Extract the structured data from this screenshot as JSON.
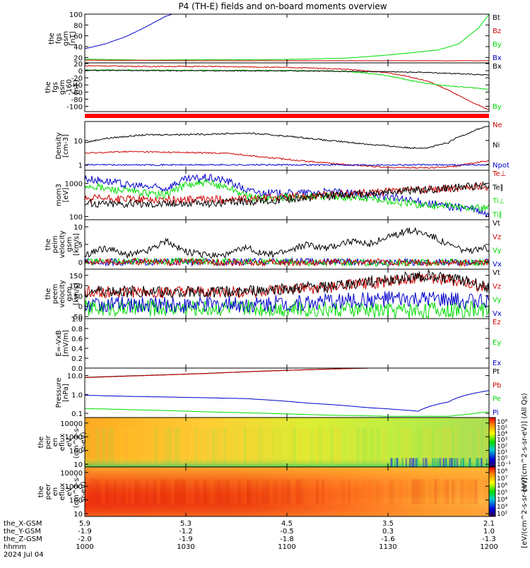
{
  "title": "P4 (TH-E) fields and on-board moments overview",
  "ephemeris": {
    "row_labels": [
      "the_X-GSM",
      "the_Y-GSM",
      "the_Z-GSM",
      "hhmm",
      "2024 Jul 04"
    ],
    "columns": [
      [
        "5.9",
        "-1.9",
        "-2.0",
        "1000"
      ],
      [
        "5.3",
        "-1.2",
        "-1.9",
        "1030"
      ],
      [
        "4.5",
        "-0.5",
        "-1.8",
        "1100"
      ],
      [
        "3.5",
        "0.3",
        "-1.6",
        "1130"
      ],
      [
        "2.1",
        "1.0",
        "-1.3",
        "1200"
      ]
    ]
  },
  "colors": {
    "black": "#000000",
    "red": "#cc0000",
    "green": "#00dd00",
    "blue": "#0000cc",
    "state_bar": "#ff0000"
  },
  "chart_data": [
    {
      "type": "line",
      "ylabel": [
        "the",
        "fgs",
        "gsm",
        "[nT]"
      ],
      "yticks": [
        "20",
        "40",
        "60",
        "80",
        "100"
      ],
      "ylim": [
        10,
        100
      ],
      "legend": [
        "Bt",
        "Bz",
        "By",
        "Bx"
      ],
      "legend_colors": [
        "#000000",
        "#cc0000",
        "#00dd00",
        "#0000cc"
      ],
      "series": [
        {
          "color": "#0000cc",
          "x": [
            0,
            10,
            20,
            30,
            40,
            45
          ],
          "y": [
            36,
            45,
            58,
            76,
            96,
            102
          ]
        },
        {
          "color": "#00dd00",
          "x": [
            0,
            30,
            60,
            90,
            110,
            130,
            145,
            160,
            175,
            185,
            195,
            200
          ],
          "y": [
            17,
            15,
            16,
            16,
            17,
            19,
            23,
            28,
            34,
            45,
            75,
            100
          ]
        },
        {
          "color": "#cc0000",
          "x": [
            0,
            60,
            120,
            200
          ],
          "y": [
            15,
            14,
            14,
            14
          ]
        }
      ]
    },
    {
      "type": "line",
      "ylabel": [
        "the",
        "fgs",
        "gsm",
        "-160",
        "[nT]"
      ],
      "yticks": [
        "20",
        "0",
        "-20",
        "-40",
        "-60",
        "-80",
        "-100"
      ],
      "ylim": [
        -115,
        22
      ],
      "legend": [
        "Bx",
        "By"
      ],
      "legend_colors": [
        "#000000",
        "#00dd00"
      ],
      "series": [
        {
          "color": "#cc0000",
          "x": [
            0,
            30,
            60,
            90,
            110,
            130,
            150,
            160,
            170,
            180,
            190,
            200
          ],
          "y": [
            14,
            12,
            12,
            10,
            8,
            4,
            -6,
            -16,
            -30,
            -55,
            -85,
            -110
          ]
        },
        {
          "color": "#00dd00",
          "x": [
            0,
            40,
            80,
            110,
            130,
            145,
            155,
            165,
            175,
            185,
            200
          ],
          "y": [
            2,
            1,
            1,
            0,
            -2,
            -10,
            -20,
            -32,
            -40,
            -45,
            -52
          ]
        },
        {
          "color": "#000000",
          "x": [
            0,
            40,
            80,
            120,
            150,
            170,
            200
          ],
          "y": [
            1,
            0,
            0,
            -1,
            -3,
            -5,
            -12
          ]
        }
      ]
    },
    {
      "type": "line",
      "log": true,
      "ylabel": [
        "Density",
        "[cm-3]"
      ],
      "yticks": [
        "1",
        "10"
      ],
      "ylim": [
        0.6,
        60
      ],
      "legend": [
        "Ne",
        "Ni",
        "Npot"
      ],
      "legend_colors": [
        "#cc0000",
        "#000000",
        "#0000cc"
      ],
      "series": [
        {
          "color": "#000000",
          "x": [
            0,
            10,
            30,
            60,
            80,
            100,
            120,
            140,
            160,
            170,
            180,
            190,
            200
          ],
          "y": [
            8,
            12,
            17,
            18,
            20,
            15,
            10,
            7,
            5,
            5,
            8,
            20,
            40
          ]
        },
        {
          "color": "#cc0000",
          "x": [
            0,
            20,
            50,
            70,
            90,
            110,
            130,
            150,
            170,
            185,
            200
          ],
          "y": [
            3,
            3.5,
            3.2,
            3,
            2,
            1.4,
            1.0,
            0.8,
            0.75,
            0.9,
            1.5
          ]
        },
        {
          "color": "#0000cc",
          "x": [
            0,
            50,
            100,
            150,
            200
          ],
          "y": [
            1,
            1,
            1,
            1,
            1
          ]
        }
      ]
    },
    {
      "type": "line",
      "log": true,
      "ylabel": [
        "mom3",
        "[eV]"
      ],
      "yticks": [
        "100",
        "1000"
      ],
      "ylim": [
        80,
        2500
      ],
      "legend": [
        "Te⊥",
        "Te∥",
        "Ti⊥",
        "Ti∥"
      ],
      "legend_colors": [
        "#cc0000",
        "#000000",
        "#00dd00",
        "#00dd00"
      ],
      "series": [
        {
          "color": "#0000cc",
          "x": [
            0,
            10,
            20,
            30,
            40,
            50,
            60,
            70,
            80,
            90,
            100,
            110,
            120,
            130,
            140,
            150,
            160,
            170,
            180,
            190,
            200
          ],
          "y": [
            1400,
            1200,
            900,
            800,
            700,
            1300,
            1500,
            1200,
            600,
            500,
            500,
            520,
            550,
            500,
            450,
            400,
            300,
            250,
            200,
            180,
            100
          ]
        },
        {
          "color": "#00dd00",
          "x": [
            0,
            10,
            20,
            30,
            40,
            50,
            60,
            70,
            80,
            90,
            100,
            110,
            120,
            130,
            140,
            150,
            160,
            170,
            180,
            190,
            200
          ],
          "y": [
            900,
            700,
            600,
            500,
            450,
            900,
            1000,
            800,
            400,
            350,
            380,
            400,
            420,
            380,
            350,
            300,
            250,
            220,
            200,
            190,
            170
          ]
        },
        {
          "color": "#cc0000",
          "x": [
            0,
            40,
            80,
            120,
            160,
            200
          ],
          "y": [
            350,
            320,
            330,
            450,
            600,
            800
          ]
        },
        {
          "color": "#000000",
          "x": [
            0,
            30,
            60,
            90,
            120,
            150,
            180,
            200
          ],
          "y": [
            250,
            240,
            250,
            300,
            400,
            550,
            700,
            900
          ]
        }
      ]
    },
    {
      "type": "line",
      "ylabel": [
        "the",
        "peim",
        "velocity",
        "gsm",
        "[km/s]"
      ],
      "yticks": [
        "0",
        "5",
        "10"
      ],
      "ylim": [
        -2,
        12
      ],
      "legend": [
        "Vt",
        "Vz",
        "Vy",
        "Vx"
      ],
      "legend_colors": [
        "#000000",
        "#cc0000",
        "#00dd00",
        "#0000cc"
      ],
      "series": [
        {
          "color": "#0000cc",
          "x": [
            0,
            50,
            100,
            150,
            200
          ],
          "y": [
            0,
            0,
            0.2,
            0,
            0
          ]
        },
        {
          "color": "#00dd00",
          "x": [
            0,
            50,
            100,
            150,
            200
          ],
          "y": [
            0,
            0.3,
            0,
            -0.2,
            0
          ]
        },
        {
          "color": "#cc0000",
          "x": [
            0,
            50,
            100,
            150,
            200
          ],
          "y": [
            0.2,
            0,
            -0.2,
            0,
            -0.3
          ]
        },
        {
          "color": "#000000",
          "x": [
            0,
            10,
            20,
            30,
            40,
            50,
            60,
            70,
            80,
            90,
            100,
            110,
            120,
            130,
            140,
            150,
            160,
            170,
            180,
            190,
            200
          ],
          "y": [
            2,
            4,
            2,
            3,
            6,
            3,
            2,
            2,
            4,
            2,
            3,
            5,
            4,
            6,
            5,
            7,
            9,
            8,
            5,
            3,
            4
          ]
        }
      ]
    },
    {
      "type": "line",
      "ylabel": [
        "the",
        "peem",
        "velocity",
        "gsm",
        "[km/s]"
      ],
      "yticks": [
        "-50",
        "0",
        "50",
        "100",
        "150"
      ],
      "ylim": [
        -60,
        180
      ],
      "legend": [
        "Vt",
        "Vz",
        "Vy",
        "Vx"
      ],
      "legend_colors": [
        "#000000",
        "#cc0000",
        "#00dd00",
        "#0000cc"
      ],
      "series": [
        {
          "color": "#00dd00",
          "x": [
            0,
            50,
            100,
            150,
            200
          ],
          "y": [
            -10,
            -8,
            -10,
            -20,
            -15
          ]
        },
        {
          "color": "#0000cc",
          "x": [
            0,
            50,
            100,
            150,
            200
          ],
          "y": [
            10,
            5,
            15,
            35,
            25
          ]
        },
        {
          "color": "#cc0000",
          "x": [
            0,
            40,
            80,
            120,
            150,
            170,
            190,
            200
          ],
          "y": [
            70,
            68,
            70,
            90,
            120,
            140,
            110,
            80
          ]
        },
        {
          "color": "#000000",
          "x": [
            0,
            40,
            80,
            120,
            150,
            170,
            190,
            200
          ],
          "y": [
            72,
            70,
            72,
            95,
            130,
            150,
            120,
            85
          ]
        }
      ]
    },
    {
      "type": "line",
      "ylabel": [
        "E=-VxB",
        "[mV/m]"
      ],
      "yticks": [
        "0.0",
        "0.2",
        "0.4",
        "0.6",
        "0.8",
        "1.0"
      ],
      "ylim": [
        0,
        1
      ],
      "legend": [
        "Ez",
        "Ey",
        "Ex"
      ],
      "legend_colors": [
        "#cc0000",
        "#00dd00",
        "#0000cc"
      ],
      "series": []
    },
    {
      "type": "line",
      "log": true,
      "ylabel": [
        "Pressure",
        "[nPa]"
      ],
      "yticks": [
        "0.1",
        "1.0",
        "10.0"
      ],
      "ylim": [
        0.06,
        25
      ],
      "legend": [
        "Pt",
        "Pb",
        "Pe",
        "Pi"
      ],
      "legend_colors": [
        "#000000",
        "#cc0000",
        "#00dd00",
        "#0000cc"
      ],
      "series": [
        {
          "color": "#000000",
          "x": [
            0,
            20,
            40,
            60,
            80,
            100,
            120,
            140
          ],
          "y": [
            8,
            9.5,
            11,
            13,
            16,
            19,
            22,
            25
          ]
        },
        {
          "color": "#cc0000",
          "x": [
            0,
            20,
            40,
            60,
            80,
            100,
            120,
            140
          ],
          "y": [
            7.8,
            9.2,
            10.8,
            12.8,
            15.8,
            18.8,
            21.8,
            24.8
          ]
        },
        {
          "color": "#0000cc",
          "x": [
            0,
            20,
            50,
            80,
            110,
            140,
            165,
            180,
            190,
            200
          ],
          "y": [
            0.9,
            0.8,
            0.7,
            0.6,
            0.35,
            0.2,
            0.13,
            0.4,
            1.0,
            1.6
          ]
        },
        {
          "color": "#00dd00",
          "x": [
            0,
            30,
            60,
            90,
            120,
            150,
            180,
            190,
            200
          ],
          "y": [
            0.18,
            0.15,
            0.12,
            0.1,
            0.08,
            0.07,
            0.07,
            0.09,
            0.12
          ]
        }
      ]
    },
    {
      "type": "heatmap",
      "ylabel": [
        "the",
        "peir",
        "en",
        "eflux",
        "eV",
        "(cm^2-s-",
        "sr-eV)"
      ],
      "yticks": [
        "10",
        "100",
        "1000",
        "10000"
      ],
      "colorbar_ticks": [
        "10⁶",
        "10⁵",
        "10⁴",
        "10³",
        "10²",
        "10¹",
        "10⁰",
        "10⁻¹"
      ],
      "colorbar_label": "[eV/(cm^2-s-sr-eV)] (All Qs)"
    },
    {
      "type": "heatmap",
      "ylabel": [
        "the",
        "peer",
        "en",
        "eflux",
        "eV",
        "(cm^2-s-",
        "sr-eV)"
      ],
      "yticks": [
        "10",
        "100",
        "1000",
        "10000"
      ],
      "colorbar_ticks": [
        "10⁸",
        "10⁷",
        "10⁶",
        "10⁵",
        "10⁴",
        "10³",
        "10²"
      ],
      "colorbar_label": "[eV/(cm^2-s-sr-eV)]"
    }
  ]
}
